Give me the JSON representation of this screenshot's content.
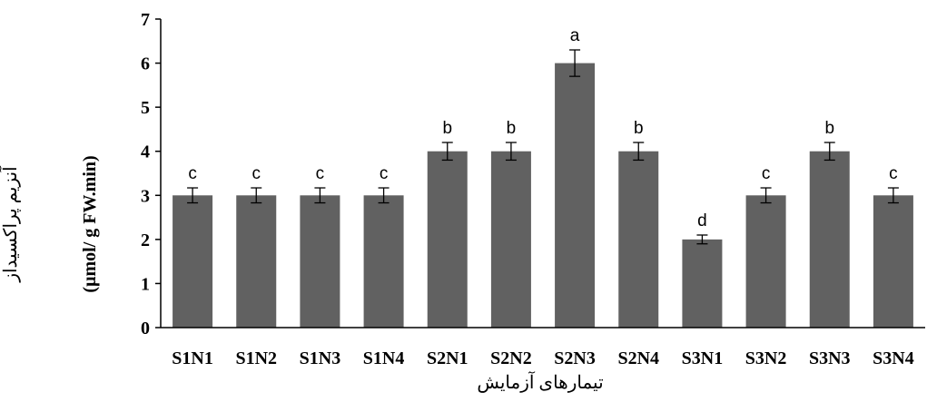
{
  "chart_data": {
    "type": "bar",
    "categories": [
      "S1N1",
      "S1N2",
      "S1N3",
      "S1N4",
      "S2N1",
      "S2N2",
      "S2N3",
      "S2N4",
      "S3N1",
      "S3N2",
      "S3N3",
      "S3N4"
    ],
    "values": [
      3,
      3,
      3,
      3,
      4,
      4,
      6,
      4,
      2,
      3,
      4,
      3
    ],
    "errors": [
      0.17,
      0.17,
      0.17,
      0.17,
      0.2,
      0.2,
      0.3,
      0.2,
      0.1,
      0.17,
      0.2,
      0.17
    ],
    "significance_letters": [
      "c",
      "c",
      "c",
      "c",
      "b",
      "b",
      "a",
      "b",
      "d",
      "c",
      "b",
      "c"
    ],
    "xlabel": "تیمارهای آزمایش",
    "ylabel_line1": "آنزیم پراکسیداز",
    "ylabel_line2": "(µmol/ g FW.min)",
    "ylim": [
      0,
      7
    ],
    "yticks": [
      0,
      1,
      2,
      3,
      4,
      5,
      6,
      7
    ],
    "bar_color": "#616161",
    "grid": false
  }
}
